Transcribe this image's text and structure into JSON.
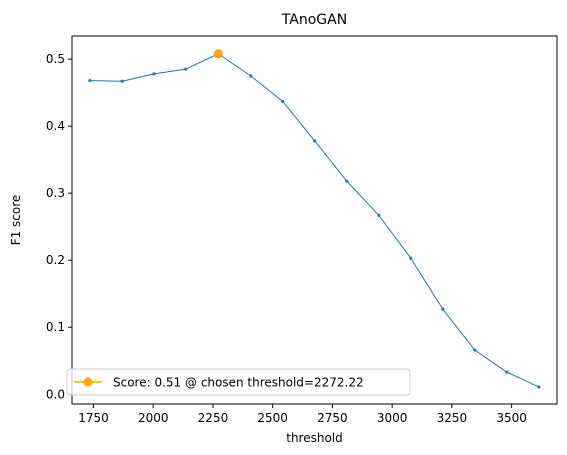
{
  "chart_data": {
    "type": "line",
    "title": "TAnoGAN",
    "xlabel": "threshold",
    "ylabel": "F1 score",
    "xlim": [
      1660,
      3690
    ],
    "ylim": [
      -0.0145,
      0.5345
    ],
    "xticks": [
      1750,
      2000,
      2250,
      2500,
      2750,
      3000,
      3250,
      3500
    ],
    "xtick_labels": [
      "1750",
      "2000",
      "2250",
      "2500",
      "2750",
      "3000",
      "3250",
      "3500"
    ],
    "yticks": [
      0.0,
      0.1,
      0.2,
      0.3,
      0.4,
      0.5
    ],
    "ytick_labels": [
      "0.0",
      "0.1",
      "0.2",
      "0.3",
      "0.4",
      "0.5"
    ],
    "grid": false,
    "legend_position": "lower-left",
    "series": [
      {
        "color": "#1f77b4",
        "marker": "small-dot",
        "x": [
          1735,
          1870,
          2003,
          2136,
          2272.22,
          2408,
          2542,
          2676,
          2810,
          2944,
          3078,
          3212,
          3346,
          3480,
          3614
        ],
        "y": [
          0.468,
          0.467,
          0.478,
          0.485,
          0.508,
          0.475,
          0.437,
          0.378,
          0.318,
          0.267,
          0.203,
          0.127,
          0.066,
          0.033,
          0.011
        ]
      }
    ],
    "highlight": {
      "name": "Score: 0.51 @ chosen threshold=2272.22",
      "x": 2272.22,
      "y": 0.508,
      "color": "#ffa500",
      "marker": "circle"
    }
  }
}
